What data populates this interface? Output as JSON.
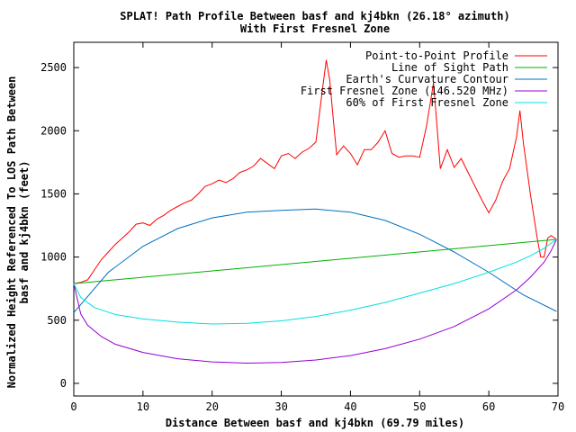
{
  "chart_data": {
    "type": "line",
    "title": "SPLAT! Path Profile Between basf and kj4bkn (26.18° azimuth)",
    "subtitle": "With First Fresnel Zone",
    "xlabel": "Distance Between basf and kj4bkn (69.79 miles)",
    "ylabel_line1": "Normalized Height Referenced To LOS Path Between",
    "ylabel_line2": "basf and kj4bkn (feet)",
    "xlim": [
      0,
      70
    ],
    "ylim": [
      -100,
      2700
    ],
    "x_ticks": [
      0,
      10,
      20,
      30,
      40,
      50,
      60,
      70
    ],
    "y_ticks": [
      0,
      500,
      1000,
      1500,
      2000,
      2500
    ],
    "grid": false,
    "legend_position": "top-right",
    "series": [
      {
        "name": "Point-to-Point Profile",
        "color": "#ff0000",
        "x": [
          0,
          1,
          2,
          3,
          4,
          5,
          6,
          7,
          8,
          9,
          10,
          11,
          12,
          13,
          14,
          15,
          16,
          17,
          18,
          19,
          20,
          21,
          22,
          23,
          24,
          25,
          26,
          27,
          28,
          29,
          30,
          31,
          32,
          33,
          34,
          35,
          36,
          36.5,
          37,
          37.5,
          38,
          39,
          40,
          41,
          42,
          43,
          44,
          45,
          46,
          47,
          48,
          49,
          50,
          51,
          52,
          53,
          54,
          55,
          56,
          57,
          58,
          59,
          60,
          61,
          62,
          63,
          64,
          64.5,
          65,
          66,
          67,
          67.5,
          68,
          68.5,
          69,
          69.79
        ],
        "y": [
          790,
          800,
          820,
          900,
          980,
          1040,
          1100,
          1150,
          1200,
          1260,
          1270,
          1250,
          1300,
          1330,
          1370,
          1400,
          1430,
          1450,
          1500,
          1560,
          1580,
          1610,
          1590,
          1620,
          1670,
          1690,
          1720,
          1780,
          1740,
          1700,
          1800,
          1820,
          1780,
          1830,
          1860,
          1910,
          2350,
          2560,
          2400,
          2100,
          1810,
          1880,
          1820,
          1730,
          1850,
          1850,
          1910,
          2000,
          1820,
          1790,
          1800,
          1800,
          1790,
          2040,
          2380,
          1700,
          1850,
          1710,
          1780,
          1670,
          1560,
          1450,
          1350,
          1450,
          1600,
          1700,
          1950,
          2160,
          1900,
          1500,
          1150,
          1000,
          1000,
          1150,
          1170,
          1140
        ]
      },
      {
        "name": "Line of Sight Path",
        "color": "#00b000",
        "x": [
          0,
          69.79
        ],
        "y": [
          790,
          1140
        ]
      },
      {
        "name": "Earth's Curvature Contour",
        "color": "#0070c0",
        "x": [
          0,
          5,
          10,
          15,
          20,
          25,
          30,
          34.9,
          40,
          45,
          50,
          55,
          60,
          65,
          69.79
        ],
        "y": [
          560,
          880,
          1085,
          1225,
          1310,
          1355,
          1370,
          1380,
          1355,
          1290,
          1180,
          1040,
          880,
          700,
          570
        ]
      },
      {
        "name": "First Fresnel Zone (146.520 MHz)",
        "color": "#9400d3",
        "x": [
          0,
          1,
          2,
          4,
          6,
          10,
          15,
          20,
          25,
          30,
          35,
          40,
          45,
          50,
          55,
          60,
          64,
          66,
          68,
          69,
          69.79
        ],
        "y": [
          790,
          550,
          460,
          370,
          310,
          245,
          195,
          170,
          160,
          165,
          185,
          220,
          275,
          350,
          450,
          590,
          740,
          840,
          960,
          1050,
          1140
        ]
      },
      {
        "name": "60% of First Fresnel Zone",
        "color": "#00e0e0",
        "x": [
          0,
          1,
          3,
          6,
          10,
          15,
          20,
          25,
          30,
          35,
          40,
          45,
          50,
          55,
          60,
          64,
          66,
          68,
          69.79
        ],
        "y": [
          790,
          680,
          600,
          545,
          510,
          485,
          470,
          475,
          495,
          530,
          580,
          640,
          715,
          790,
          880,
          960,
          1010,
          1070,
          1140
        ]
      }
    ]
  }
}
